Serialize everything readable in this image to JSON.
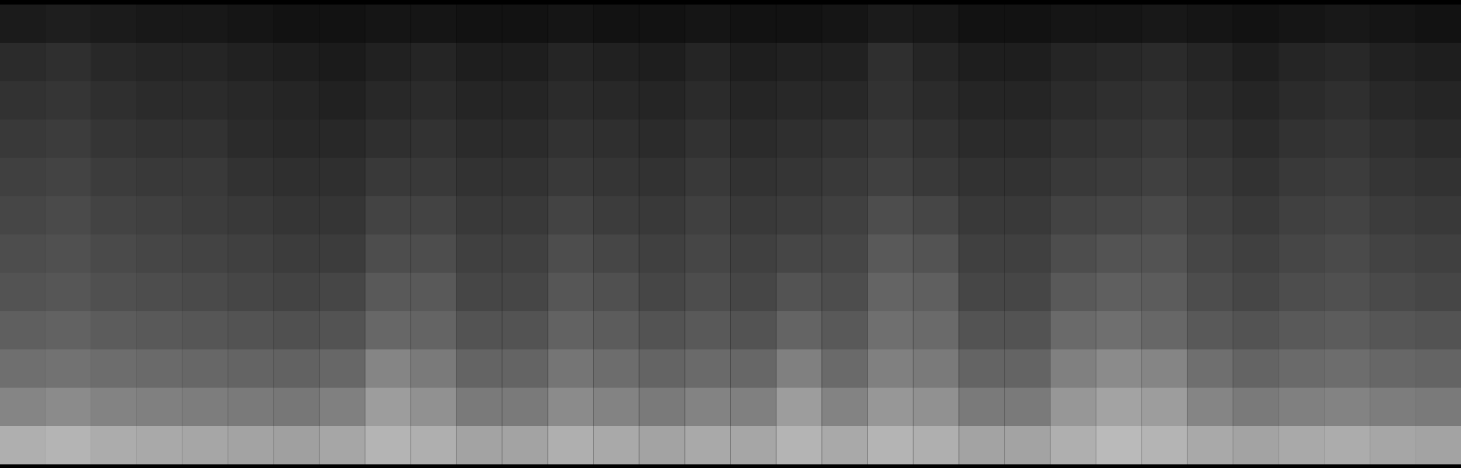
{
  "chart_data": {
    "type": "heatmap",
    "color": "gray",
    "tick_labels": false,
    "zlim": [
      0,
      100
    ],
    "cells": [
      [
        9,
        10,
        9,
        8,
        8,
        7,
        6,
        6,
        7,
        7,
        6,
        6,
        7,
        6,
        6,
        7,
        6,
        6,
        7,
        9,
        8,
        6,
        6,
        7,
        7,
        8,
        7,
        6,
        7,
        8,
        7,
        6
      ],
      [
        14,
        15,
        13,
        12,
        12,
        11,
        10,
        9,
        11,
        12,
        10,
        10,
        12,
        11,
        10,
        12,
        10,
        11,
        11,
        15,
        12,
        10,
        10,
        12,
        13,
        14,
        12,
        10,
        12,
        13,
        11,
        10
      ],
      [
        16,
        17,
        15,
        14,
        14,
        13,
        12,
        11,
        13,
        14,
        12,
        12,
        14,
        13,
        12,
        14,
        12,
        13,
        13,
        16,
        14,
        12,
        12,
        14,
        15,
        16,
        14,
        12,
        14,
        15,
        13,
        12
      ],
      [
        18,
        19,
        17,
        16,
        16,
        14,
        13,
        13,
        15,
        16,
        14,
        14,
        16,
        15,
        14,
        16,
        14,
        15,
        16,
        18,
        16,
        14,
        14,
        16,
        17,
        18,
        16,
        14,
        16,
        17,
        15,
        14
      ],
      [
        20,
        21,
        19,
        18,
        18,
        16,
        15,
        15,
        18,
        18,
        16,
        16,
        18,
        17,
        16,
        18,
        16,
        17,
        18,
        20,
        18,
        16,
        16,
        18,
        19,
        20,
        18,
        16,
        18,
        19,
        17,
        16
      ],
      [
        22,
        23,
        21,
        20,
        19,
        18,
        17,
        17,
        21,
        21,
        18,
        18,
        21,
        19,
        18,
        20,
        18,
        19,
        20,
        24,
        22,
        18,
        18,
        21,
        22,
        23,
        20,
        18,
        20,
        21,
        19,
        18
      ],
      [
        24,
        25,
        23,
        22,
        21,
        20,
        19,
        19,
        24,
        24,
        20,
        20,
        24,
        22,
        20,
        22,
        20,
        22,
        22,
        28,
        26,
        20,
        20,
        24,
        26,
        26,
        22,
        20,
        22,
        23,
        21,
        20
      ],
      [
        26,
        27,
        25,
        24,
        23,
        22,
        21,
        22,
        28,
        28,
        22,
        22,
        27,
        25,
        22,
        24,
        22,
        26,
        24,
        32,
        30,
        22,
        22,
        28,
        30,
        29,
        24,
        22,
        24,
        25,
        23,
        22
      ],
      [
        30,
        31,
        29,
        28,
        27,
        26,
        25,
        26,
        33,
        32,
        26,
        26,
        31,
        29,
        26,
        28,
        26,
        32,
        28,
        36,
        34,
        26,
        26,
        34,
        36,
        33,
        28,
        26,
        28,
        29,
        27,
        26
      ],
      [
        36,
        37,
        35,
        34,
        33,
        32,
        31,
        33,
        44,
        40,
        32,
        32,
        38,
        35,
        32,
        34,
        33,
        42,
        34,
        42,
        40,
        32,
        32,
        42,
        46,
        44,
        36,
        32,
        34,
        35,
        33,
        32
      ],
      [
        44,
        46,
        43,
        42,
        41,
        40,
        39,
        42,
        52,
        48,
        40,
        40,
        46,
        43,
        40,
        43,
        42,
        52,
        43,
        50,
        48,
        40,
        40,
        50,
        54,
        52,
        44,
        40,
        42,
        43,
        41,
        40
      ],
      [
        58,
        60,
        57,
        56,
        55,
        54,
        53,
        55,
        60,
        58,
        54,
        54,
        58,
        56,
        54,
        56,
        55,
        60,
        56,
        60,
        58,
        54,
        54,
        58,
        62,
        60,
        56,
        54,
        56,
        57,
        55,
        54
      ]
    ]
  }
}
